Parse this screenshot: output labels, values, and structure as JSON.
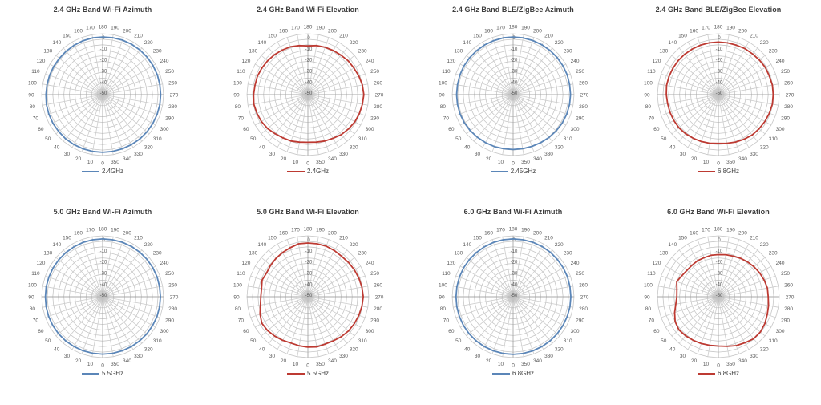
{
  "page": {
    "background": "#ffffff"
  },
  "colors": {
    "azimuth_blue": "#5b86b8",
    "elevation_red": "#bd3a32",
    "grid_minor": "#cccccc",
    "grid_major": "#a8a8a8",
    "ring": "#c6c6c6",
    "tick_label": "#595959",
    "title_text": "#3d3d3d",
    "legend_text": "#404040"
  },
  "radial_axis": {
    "max_db": 0,
    "min_db": -55,
    "ring_step_db": 5,
    "labels": [
      "0",
      "-10",
      "-20",
      "-30",
      "-40",
      "-50"
    ],
    "label_values": [
      0,
      -10,
      -20,
      -30,
      -40,
      -50
    ]
  },
  "angle_axis": {
    "step_deg": 10,
    "labels_deg": [
      0,
      10,
      20,
      30,
      40,
      50,
      60,
      70,
      80,
      90,
      100,
      110,
      120,
      130,
      140,
      150,
      160,
      170,
      180,
      190,
      200,
      210,
      220,
      230,
      240,
      250,
      260,
      270,
      280,
      290,
      300,
      310,
      320,
      330,
      340,
      350
    ]
  },
  "chart_data": [
    {
      "type": "polar-line",
      "title": "2.4 GHz Band Wi-Fi Azimuth",
      "legend": "2.4GHz",
      "color_key": "azimuth_blue",
      "angles_deg": [
        0,
        10,
        20,
        30,
        40,
        50,
        60,
        70,
        80,
        90,
        100,
        110,
        120,
        130,
        140,
        150,
        160,
        170,
        180,
        190,
        200,
        210,
        220,
        230,
        240,
        250,
        260,
        270,
        280,
        290,
        300,
        310,
        320,
        330,
        340,
        350
      ],
      "values_db": [
        -3.0,
        -3.0,
        -3.0,
        -3.0,
        -3.0,
        -3.2,
        -3.2,
        -3.3,
        -3.5,
        -3.8,
        -4.0,
        -4.0,
        -4.0,
        -4.0,
        -3.8,
        -3.5,
        -3.2,
        -3.0,
        -3.0,
        -2.8,
        -2.6,
        -2.5,
        -2.5,
        -2.5,
        -2.5,
        -2.5,
        -2.6,
        -2.6,
        -2.6,
        -2.7,
        -2.8,
        -2.8,
        -2.8,
        -2.9,
        -3.0,
        -3.0
      ]
    },
    {
      "type": "polar-line",
      "title": "2.4 GHz Band Wi-Fi Elevation",
      "legend": "2.4GHz",
      "color_key": "elevation_red",
      "angles_deg": [
        0,
        10,
        20,
        30,
        40,
        50,
        60,
        70,
        80,
        90,
        100,
        110,
        120,
        130,
        140,
        150,
        160,
        170,
        180,
        190,
        200,
        210,
        220,
        230,
        240,
        250,
        260,
        270,
        280,
        290,
        300,
        310,
        320,
        330,
        340,
        350
      ],
      "values_db": [
        -12,
        -11.5,
        -10.5,
        -10,
        -9,
        -7.5,
        -6.5,
        -6,
        -5.5,
        -6,
        -6.5,
        -6.5,
        -7,
        -7.5,
        -8,
        -8.5,
        -9,
        -10,
        -11,
        -10,
        -9.5,
        -9,
        -8.5,
        -7.5,
        -7,
        -6,
        -5,
        -4.5,
        -5,
        -5.5,
        -6,
        -7,
        -8,
        -9.5,
        -10.5,
        -11.5
      ]
    },
    {
      "type": "polar-line",
      "title": "2.4 GHz Band BLE/ZigBee Azimuth",
      "legend": "2.45GHz",
      "color_key": "azimuth_blue",
      "angles_deg": [
        0,
        10,
        20,
        30,
        40,
        50,
        60,
        70,
        80,
        90,
        100,
        110,
        120,
        130,
        140,
        150,
        160,
        170,
        180,
        190,
        200,
        210,
        220,
        230,
        240,
        250,
        260,
        270,
        280,
        290,
        300,
        310,
        320,
        330,
        340,
        350
      ],
      "values_db": [
        -5.5,
        -5.5,
        -5.2,
        -5.0,
        -4.8,
        -4.5,
        -4.2,
        -4.0,
        -4.0,
        -4.0,
        -4.0,
        -3.8,
        -3.6,
        -3.5,
        -3.4,
        -3.3,
        -3.2,
        -3.0,
        -3.0,
        -3.0,
        -3.0,
        -3.0,
        -3.0,
        -3.0,
        -3.0,
        -3.0,
        -3.2,
        -3.2,
        -3.3,
        -3.5,
        -3.8,
        -4.2,
        -4.6,
        -5.0,
        -5.3,
        -5.5
      ]
    },
    {
      "type": "polar-line",
      "title": "2.4 GHz Band BLE/ZigBee Elevation",
      "legend": "6.8GHz",
      "color_key": "elevation_red",
      "angles_deg": [
        0,
        10,
        20,
        30,
        40,
        50,
        60,
        70,
        80,
        90,
        100,
        110,
        120,
        130,
        140,
        150,
        160,
        170,
        180,
        190,
        200,
        210,
        220,
        230,
        240,
        250,
        260,
        270,
        280,
        290,
        300,
        310,
        320,
        330,
        340,
        350
      ],
      "values_db": [
        -11,
        -10.5,
        -10,
        -9.5,
        -9,
        -8.5,
        -8.5,
        -8.5,
        -8.5,
        -8,
        -7.5,
        -7.5,
        -7.5,
        -7.5,
        -7.5,
        -7.5,
        -7.5,
        -7.5,
        -7.5,
        -7.5,
        -7.5,
        -7,
        -7,
        -6.5,
        -6,
        -6,
        -5.5,
        -5.5,
        -5.5,
        -6,
        -6.5,
        -7,
        -7.5,
        -8.5,
        -9.5,
        -10.5
      ]
    },
    {
      "type": "polar-line",
      "title": "5.0 GHz Band Wi-Fi Azimuth",
      "legend": "5.5GHz",
      "color_key": "azimuth_blue",
      "angles_deg": [
        0,
        10,
        20,
        30,
        40,
        50,
        60,
        70,
        80,
        90,
        100,
        110,
        120,
        130,
        140,
        150,
        160,
        170,
        180,
        190,
        200,
        210,
        220,
        230,
        240,
        250,
        260,
        270,
        280,
        290,
        300,
        310,
        320,
        330,
        340,
        350
      ],
      "values_db": [
        -3.2,
        -3.2,
        -3.1,
        -3.1,
        -3.0,
        -3.0,
        -3.0,
        -3.1,
        -3.2,
        -3.3,
        -3.3,
        -3.3,
        -3.3,
        -3.2,
        -3.1,
        -3.0,
        -2.9,
        -2.8,
        -2.8,
        -2.8,
        -2.7,
        -2.7,
        -2.7,
        -2.7,
        -2.7,
        -2.7,
        -2.8,
        -2.8,
        -2.8,
        -2.8,
        -2.9,
        -2.9,
        -3.0,
        -3.0,
        -3.1,
        -3.1
      ]
    },
    {
      "type": "polar-line",
      "title": "5.0 GHz Band Wi-Fi Elevation",
      "legend": "5.5GHz",
      "color_key": "elevation_red",
      "angles_deg": [
        0,
        10,
        20,
        30,
        40,
        50,
        60,
        70,
        80,
        90,
        100,
        110,
        120,
        130,
        140,
        150,
        160,
        170,
        180,
        190,
        200,
        210,
        220,
        230,
        240,
        250,
        260,
        270,
        280,
        290,
        300,
        310,
        320,
        330,
        340,
        350
      ],
      "values_db": [
        -9.5,
        -10,
        -10.5,
        -9.5,
        -8.5,
        -7.5,
        -7,
        -9,
        -11.5,
        -12.5,
        -12.5,
        -11,
        -12,
        -11,
        -10,
        -9,
        -8,
        -6.5,
        -6.5,
        -6.5,
        -6.5,
        -7,
        -7.5,
        -7,
        -6.5,
        -6,
        -5.5,
        -5,
        -5.5,
        -6,
        -6.5,
        -7,
        -8,
        -9,
        -9.5,
        -9
      ]
    },
    {
      "type": "polar-line",
      "title": "6.0 GHz Band Wi-Fi Azimuth",
      "legend": "6.8GHz",
      "color_key": "azimuth_blue",
      "angles_deg": [
        0,
        10,
        20,
        30,
        40,
        50,
        60,
        70,
        80,
        90,
        100,
        110,
        120,
        130,
        140,
        150,
        160,
        170,
        180,
        190,
        200,
        210,
        220,
        230,
        240,
        250,
        260,
        270,
        280,
        290,
        300,
        310,
        320,
        330,
        340,
        350
      ],
      "values_db": [
        -3.0,
        -3.0,
        -3.0,
        -3.0,
        -3.0,
        -3.1,
        -3.2,
        -3.3,
        -3.4,
        -3.5,
        -3.5,
        -3.4,
        -3.3,
        -3.2,
        -3.1,
        -3.0,
        -2.9,
        -2.8,
        -2.8,
        -2.8,
        -2.7,
        -2.7,
        -2.7,
        -2.8,
        -2.8,
        -2.8,
        -2.9,
        -2.9,
        -2.9,
        -3.0,
        -3.0,
        -3.0,
        -3.0,
        -3.0,
        -3.0,
        -3.0
      ]
    },
    {
      "type": "polar-line",
      "title": "6.0 GHz Band Wi-Fi Elevation",
      "legend": "6.8GHz",
      "color_key": "elevation_red",
      "angles_deg": [
        0,
        10,
        20,
        30,
        40,
        50,
        60,
        70,
        80,
        90,
        100,
        110,
        120,
        130,
        140,
        150,
        160,
        170,
        180,
        190,
        200,
        210,
        220,
        230,
        240,
        250,
        260,
        270,
        280,
        290,
        300,
        310,
        320,
        330,
        340,
        350
      ],
      "values_db": [
        -10.5,
        -10.5,
        -10,
        -9.5,
        -9,
        -8.5,
        -10,
        -13,
        -16,
        -17.5,
        -17,
        -15,
        -17,
        -18,
        -18,
        -17.5,
        -17.5,
        -17,
        -17,
        -16.5,
        -16,
        -15,
        -14,
        -13,
        -12,
        -11,
        -10,
        -10,
        -9,
        -8,
        -6.5,
        -5.5,
        -5.5,
        -7,
        -8,
        -9.5
      ]
    }
  ]
}
